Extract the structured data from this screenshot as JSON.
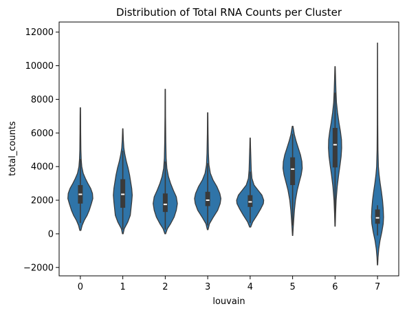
{
  "chart_data": {
    "type": "violin",
    "title": "Distribution of Total RNA Counts per Cluster",
    "xlabel": "louvain",
    "ylabel": "total_counts",
    "ylim": [
      -2500,
      12600
    ],
    "yticks": [
      -2000,
      0,
      2000,
      4000,
      6000,
      8000,
      10000,
      12000
    ],
    "grid": false,
    "color": "#2f74a8",
    "edge_color": "#3a3a3a",
    "categories": [
      "0",
      "1",
      "2",
      "3",
      "4",
      "5",
      "6",
      "7"
    ],
    "violins": [
      {
        "category": "0",
        "min": 200,
        "max": 7500,
        "q1": 1800,
        "median": 2350,
        "q3": 2900,
        "whisker_low": 650,
        "whisker_high": 4450,
        "profile": [
          [
            200,
            0.03
          ],
          [
            500,
            0.1
          ],
          [
            800,
            0.22
          ],
          [
            1100,
            0.38
          ],
          [
            1400,
            0.5
          ],
          [
            1800,
            0.62
          ],
          [
            2100,
            0.7
          ],
          [
            2400,
            0.68
          ],
          [
            2700,
            0.58
          ],
          [
            3000,
            0.42
          ],
          [
            3300,
            0.28
          ],
          [
            3600,
            0.16
          ],
          [
            4000,
            0.08
          ],
          [
            4400,
            0.05
          ],
          [
            5000,
            0.03
          ],
          [
            6000,
            0.02
          ],
          [
            7000,
            0.015
          ],
          [
            7500,
            0.01
          ]
        ]
      },
      {
        "category": "1",
        "min": 0,
        "max": 6250,
        "q1": 1550,
        "median": 2350,
        "q3": 3250,
        "whisker_low": 250,
        "whisker_high": 4950,
        "profile": [
          [
            0,
            0.02
          ],
          [
            300,
            0.08
          ],
          [
            700,
            0.28
          ],
          [
            1100,
            0.42
          ],
          [
            1500,
            0.46
          ],
          [
            1900,
            0.5
          ],
          [
            2300,
            0.53
          ],
          [
            2700,
            0.5
          ],
          [
            3100,
            0.44
          ],
          [
            3500,
            0.38
          ],
          [
            3900,
            0.3
          ],
          [
            4300,
            0.2
          ],
          [
            4700,
            0.12
          ],
          [
            5100,
            0.06
          ],
          [
            5600,
            0.03
          ],
          [
            6250,
            0.01
          ]
        ]
      },
      {
        "category": "2",
        "min": 0,
        "max": 8600,
        "q1": 1300,
        "median": 1750,
        "q3": 2400,
        "whisker_low": 250,
        "whisker_high": 4300,
        "profile": [
          [
            0,
            0.02
          ],
          [
            300,
            0.12
          ],
          [
            600,
            0.3
          ],
          [
            1000,
            0.5
          ],
          [
            1400,
            0.62
          ],
          [
            1800,
            0.68
          ],
          [
            2200,
            0.62
          ],
          [
            2600,
            0.45
          ],
          [
            3000,
            0.3
          ],
          [
            3400,
            0.18
          ],
          [
            3900,
            0.09
          ],
          [
            4500,
            0.05
          ],
          [
            5500,
            0.03
          ],
          [
            7000,
            0.015
          ],
          [
            8600,
            0.01
          ]
        ]
      },
      {
        "category": "3",
        "min": 250,
        "max": 7200,
        "q1": 1650,
        "median": 2000,
        "q3": 2500,
        "whisker_low": 500,
        "whisker_high": 4200,
        "profile": [
          [
            250,
            0.02
          ],
          [
            600,
            0.1
          ],
          [
            1000,
            0.32
          ],
          [
            1400,
            0.56
          ],
          [
            1800,
            0.7
          ],
          [
            2100,
            0.74
          ],
          [
            2400,
            0.68
          ],
          [
            2800,
            0.52
          ],
          [
            3200,
            0.3
          ],
          [
            3600,
            0.15
          ],
          [
            4100,
            0.07
          ],
          [
            4800,
            0.04
          ],
          [
            6000,
            0.02
          ],
          [
            7200,
            0.01
          ]
        ]
      },
      {
        "category": "4",
        "min": 400,
        "max": 5700,
        "q1": 1600,
        "median": 1900,
        "q3": 2300,
        "whisker_low": 650,
        "whisker_high": 3700,
        "profile": [
          [
            400,
            0.03
          ],
          [
            700,
            0.14
          ],
          [
            1100,
            0.38
          ],
          [
            1500,
            0.6
          ],
          [
            1800,
            0.74
          ],
          [
            2000,
            0.76
          ],
          [
            2300,
            0.66
          ],
          [
            2600,
            0.44
          ],
          [
            2900,
            0.22
          ],
          [
            3300,
            0.1
          ],
          [
            3800,
            0.06
          ],
          [
            4500,
            0.04
          ],
          [
            5200,
            0.02
          ],
          [
            5700,
            0.01
          ]
        ]
      },
      {
        "category": "5",
        "min": -100,
        "max": 6400,
        "q1": 2900,
        "median": 3850,
        "q3": 4550,
        "whisker_low": 500,
        "whisker_high": 5950,
        "profile": [
          [
            -100,
            0.01
          ],
          [
            300,
            0.03
          ],
          [
            800,
            0.06
          ],
          [
            1400,
            0.1
          ],
          [
            2000,
            0.16
          ],
          [
            2600,
            0.26
          ],
          [
            3100,
            0.38
          ],
          [
            3500,
            0.48
          ],
          [
            3900,
            0.54
          ],
          [
            4300,
            0.52
          ],
          [
            4700,
            0.44
          ],
          [
            5100,
            0.32
          ],
          [
            5500,
            0.2
          ],
          [
            5900,
            0.1
          ],
          [
            6400,
            0.02
          ]
        ]
      },
      {
        "category": "6",
        "min": 450,
        "max": 9950,
        "q1": 3950,
        "median": 5300,
        "q3": 6300,
        "whisker_low": 900,
        "whisker_high": 8400,
        "profile": [
          [
            450,
            0.01
          ],
          [
            1200,
            0.03
          ],
          [
            2000,
            0.06
          ],
          [
            2800,
            0.12
          ],
          [
            3500,
            0.2
          ],
          [
            4100,
            0.28
          ],
          [
            4600,
            0.34
          ],
          [
            5100,
            0.37
          ],
          [
            5600,
            0.36
          ],
          [
            6100,
            0.3
          ],
          [
            6600,
            0.22
          ],
          [
            7200,
            0.14
          ],
          [
            7800,
            0.08
          ],
          [
            8500,
            0.05
          ],
          [
            9200,
            0.03
          ],
          [
            9950,
            0.01
          ]
        ]
      },
      {
        "category": "7",
        "min": -1850,
        "max": 11350,
        "q1": 600,
        "median": 950,
        "q3": 1450,
        "whisker_low": -100,
        "whisker_high": 1700,
        "profile": [
          [
            -1850,
            0.01
          ],
          [
            -1400,
            0.03
          ],
          [
            -900,
            0.07
          ],
          [
            -400,
            0.14
          ],
          [
            100,
            0.24
          ],
          [
            600,
            0.32
          ],
          [
            1000,
            0.34
          ],
          [
            1500,
            0.32
          ],
          [
            2000,
            0.28
          ],
          [
            2500,
            0.22
          ],
          [
            3000,
            0.15
          ],
          [
            3500,
            0.09
          ],
          [
            4000,
            0.05
          ],
          [
            5000,
            0.025
          ],
          [
            6500,
            0.015
          ],
          [
            8500,
            0.01
          ],
          [
            11350,
            0.005
          ]
        ]
      }
    ]
  }
}
